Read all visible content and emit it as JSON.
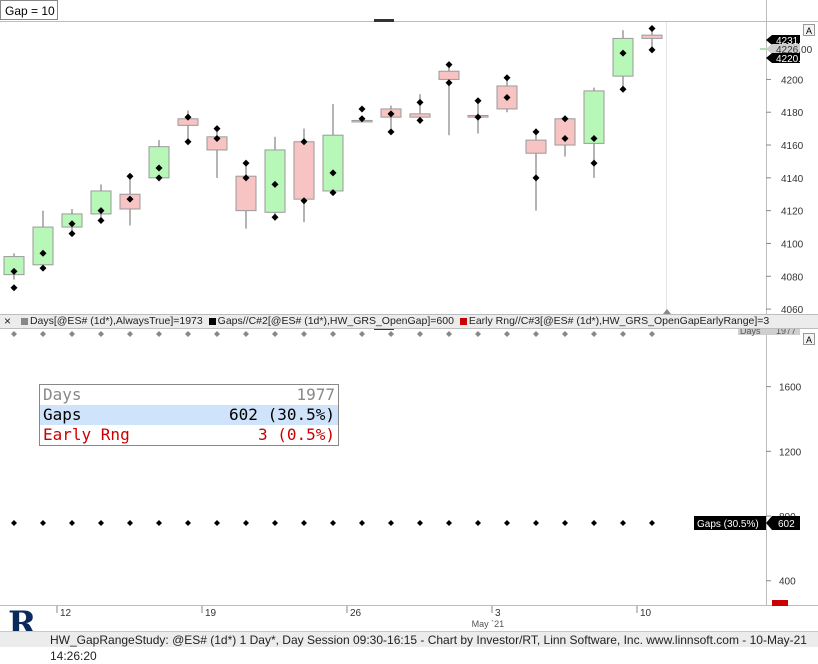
{
  "chart_title_box": "Gap = 10",
  "price_axis": {
    "ticks": [
      "4060",
      "4080",
      "4100",
      "4120",
      "4140",
      "4160",
      "4180",
      "4200"
    ],
    "markers": [
      {
        "text": "4231.00",
        "bg": "#000000",
        "fg": "#ffffff"
      },
      {
        "text": "4226.00",
        "bg": "#cfcfcf",
        "fg": "#333333"
      },
      {
        "text": "4220.50",
        "bg": "#000000",
        "fg": "#ffffff"
      }
    ],
    "button": "A"
  },
  "lower_axis": {
    "ticks": [
      "400",
      "800",
      "1200",
      "1600"
    ],
    "button": "A",
    "days_marker": "Days",
    "days_value": "1977"
  },
  "legend": {
    "close_icon": "×",
    "items": [
      {
        "label": "Days[@ES# (1d*),AlwaysTrue]=1973",
        "color": "#888888"
      },
      {
        "label": "Gaps//C#2[@ES# (1d*),HW_GRS_OpenGap]=600",
        "color": "#000000"
      },
      {
        "label": "Early Rng//C#3[@ES# (1d*),HW_GRS_OpenGapEarlyRange]=3",
        "color": "#cc0000"
      }
    ]
  },
  "stats": [
    {
      "name": "Days",
      "value": "1977",
      "color": "#888888",
      "bg": "#ffffff"
    },
    {
      "name": "Gaps",
      "value": "602 (30.5%)",
      "color": "#000000",
      "bg": "#cfe4fb"
    },
    {
      "name": "Early Rng",
      "value": "3 (0.5%)",
      "color": "#cc0000",
      "bg": "#ffffff"
    }
  ],
  "gaps_marker": {
    "label": "Gaps (30.5%)",
    "value": "602"
  },
  "time_axis": {
    "labels": [
      {
        "text": "12",
        "bar": 2
      },
      {
        "text": "19",
        "bar": 7
      },
      {
        "text": "26",
        "bar": 12
      },
      {
        "text": "3",
        "bar": 17
      },
      {
        "text": "10",
        "bar": 22
      }
    ],
    "month_label": {
      "text": "May `21",
      "bar": 16.4
    }
  },
  "footer": "HW_GapRangeStudy: @ES# (1d*) 1 Day*, Day Session 09:30-16:15 - Chart by Investor/RT, Linn Software, Inc. www.linnsoft.com - 10-May-21 14:26:20",
  "chart_data": {
    "type": "candlestick",
    "price_range": [
      4057,
      4235
    ],
    "up_color": "#b7f7b7",
    "down_color": "#f7c3c3",
    "bars": [
      {
        "o": 4081,
        "h": 4094,
        "l": 4078,
        "c": 4092,
        "m": [
          4083,
          4073
        ]
      },
      {
        "o": 4087,
        "h": 4120,
        "l": 4085,
        "c": 4110,
        "m": [
          4094,
          4085
        ]
      },
      {
        "o": 4110,
        "h": 4121,
        "l": 4106,
        "c": 4118,
        "m": [
          4112,
          4106
        ]
      },
      {
        "o": 4118,
        "h": 4136,
        "l": 4113,
        "c": 4132,
        "m": [
          4120,
          4114
        ]
      },
      {
        "o": 4130,
        "h": 4140,
        "l": 4111,
        "c": 4121,
        "m": [
          4127,
          4141
        ]
      },
      {
        "o": 4140,
        "h": 4163,
        "l": 4138,
        "c": 4159,
        "m": [
          4146,
          4140
        ]
      },
      {
        "o": 4176,
        "h": 4181,
        "l": 4163,
        "c": 4172,
        "m": [
          4177,
          4162
        ]
      },
      {
        "o": 4165,
        "h": 4171,
        "l": 4140,
        "c": 4157,
        "m": [
          4164,
          4170
        ]
      },
      {
        "o": 4141,
        "h": 4150,
        "l": 4109,
        "c": 4120,
        "m": [
          4140,
          4149
        ]
      },
      {
        "o": 4119,
        "h": 4165,
        "l": 4114,
        "c": 4157,
        "m": [
          4136,
          4116
        ]
      },
      {
        "o": 4162,
        "h": 4170,
        "l": 4113,
        "c": 4127,
        "m": [
          4162,
          4126
        ]
      },
      {
        "o": 4132,
        "h": 4185,
        "l": 4130,
        "c": 4166,
        "m": [
          4143,
          4131
        ]
      },
      {
        "o": 4175,
        "h": 4176,
        "l": 4174,
        "c": 4175,
        "m": [
          4176,
          4182
        ]
      },
      {
        "o": 4182,
        "h": 4184,
        "l": 4170,
        "c": 4177,
        "m": [
          4179,
          4168
        ]
      },
      {
        "o": 4179,
        "h": 4191,
        "l": 4173,
        "c": 4177,
        "m": [
          4186,
          4175
        ]
      },
      {
        "o": 4205,
        "h": 4210,
        "l": 4166,
        "c": 4200,
        "m": [
          4209,
          4198
        ]
      },
      {
        "o": 4178,
        "h": 4188,
        "l": 4167,
        "c": 4177,
        "m": [
          4187,
          4177
        ]
      },
      {
        "o": 4196,
        "h": 4201,
        "l": 4180,
        "c": 4182,
        "m": [
          4201,
          4189
        ]
      },
      {
        "o": 4163,
        "h": 4170,
        "l": 4120,
        "c": 4155,
        "m": [
          4168,
          4140
        ]
      },
      {
        "o": 4176,
        "h": 4178,
        "l": 4153,
        "c": 4160,
        "m": [
          4176,
          4164
        ]
      },
      {
        "o": 4161,
        "h": 4195,
        "l": 4140,
        "c": 4193,
        "m": [
          4164,
          4149
        ]
      },
      {
        "o": 4202,
        "h": 4230,
        "l": 4194,
        "c": 4225,
        "m": [
          4216,
          4194
        ]
      },
      {
        "o": 4227,
        "h": 4231,
        "l": 4217,
        "c": 4225,
        "m": [
          4231,
          4218
        ]
      }
    ],
    "gaps_series_bars": 23
  }
}
